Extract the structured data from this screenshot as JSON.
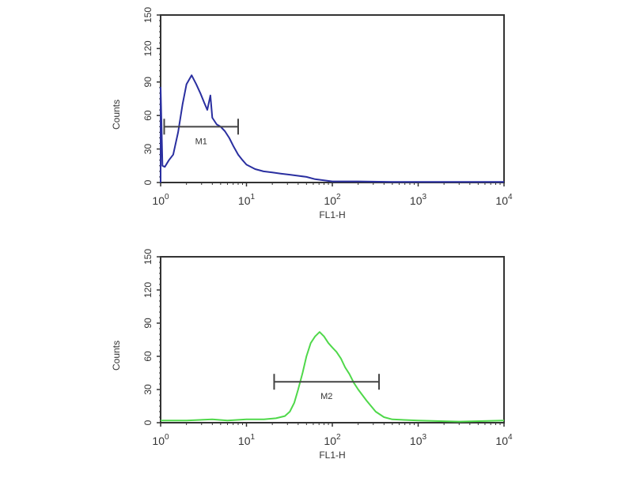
{
  "chart_data": [
    {
      "type": "area",
      "xscale": "log",
      "xlim": [
        1,
        10000
      ],
      "ylim": [
        0,
        150
      ],
      "xlabel": "FL1-H",
      "ylabel": "Counts",
      "xticks": [
        "10^0",
        "10^1",
        "10^2",
        "10^3",
        "10^4"
      ],
      "yticks": [
        0,
        30,
        60,
        90,
        120,
        150
      ],
      "color": "#2a2fa0",
      "x": [
        1.0,
        1.0,
        1.05,
        1.12,
        1.25,
        1.4,
        1.6,
        1.8,
        2.0,
        2.3,
        2.6,
        2.9,
        3.2,
        3.5,
        3.8,
        4.0,
        4.5,
        5.0,
        5.6,
        6.3,
        7.1,
        8.0,
        9.0,
        10.0,
        12.6,
        15.8,
        20,
        25,
        32,
        40,
        50,
        63,
        80,
        100,
        200,
        500,
        1000,
        10000
      ],
      "y": [
        0,
        85,
        15,
        14,
        20,
        25,
        45,
        70,
        88,
        96,
        88,
        80,
        72,
        65,
        78,
        58,
        52,
        50,
        46,
        40,
        32,
        25,
        20,
        16,
        12,
        10,
        9,
        8,
        7,
        6,
        5,
        3,
        2,
        1,
        1,
        0.5,
        0.5,
        0.5
      ],
      "marker": {
        "label": "M1",
        "range": [
          1.1,
          8.0
        ],
        "y": 50
      }
    },
    {
      "type": "area",
      "xscale": "log",
      "xlim": [
        1,
        10000
      ],
      "ylim": [
        0,
        150
      ],
      "xlabel": "FL1-H",
      "ylabel": "Counts",
      "xticks": [
        "10^0",
        "10^1",
        "10^2",
        "10^3",
        "10^4"
      ],
      "yticks": [
        0,
        30,
        60,
        90,
        120,
        150
      ],
      "color": "#4fd84a",
      "x": [
        1,
        2,
        4,
        6,
        10,
        16,
        22,
        28,
        32,
        36,
        40,
        45,
        50,
        56,
        63,
        71,
        80,
        90,
        100,
        112,
        126,
        141,
        158,
        178,
        200,
        250,
        320,
        400,
        500,
        1000,
        3000,
        10000
      ],
      "y": [
        2,
        2,
        3,
        2,
        3,
        3,
        4,
        6,
        10,
        18,
        30,
        45,
        60,
        72,
        78,
        82,
        78,
        72,
        68,
        64,
        58,
        50,
        44,
        36,
        30,
        20,
        10,
        5,
        3,
        2,
        1,
        2
      ],
      "marker": {
        "label": "M2",
        "range": [
          21,
          350
        ],
        "y": 37
      }
    }
  ]
}
